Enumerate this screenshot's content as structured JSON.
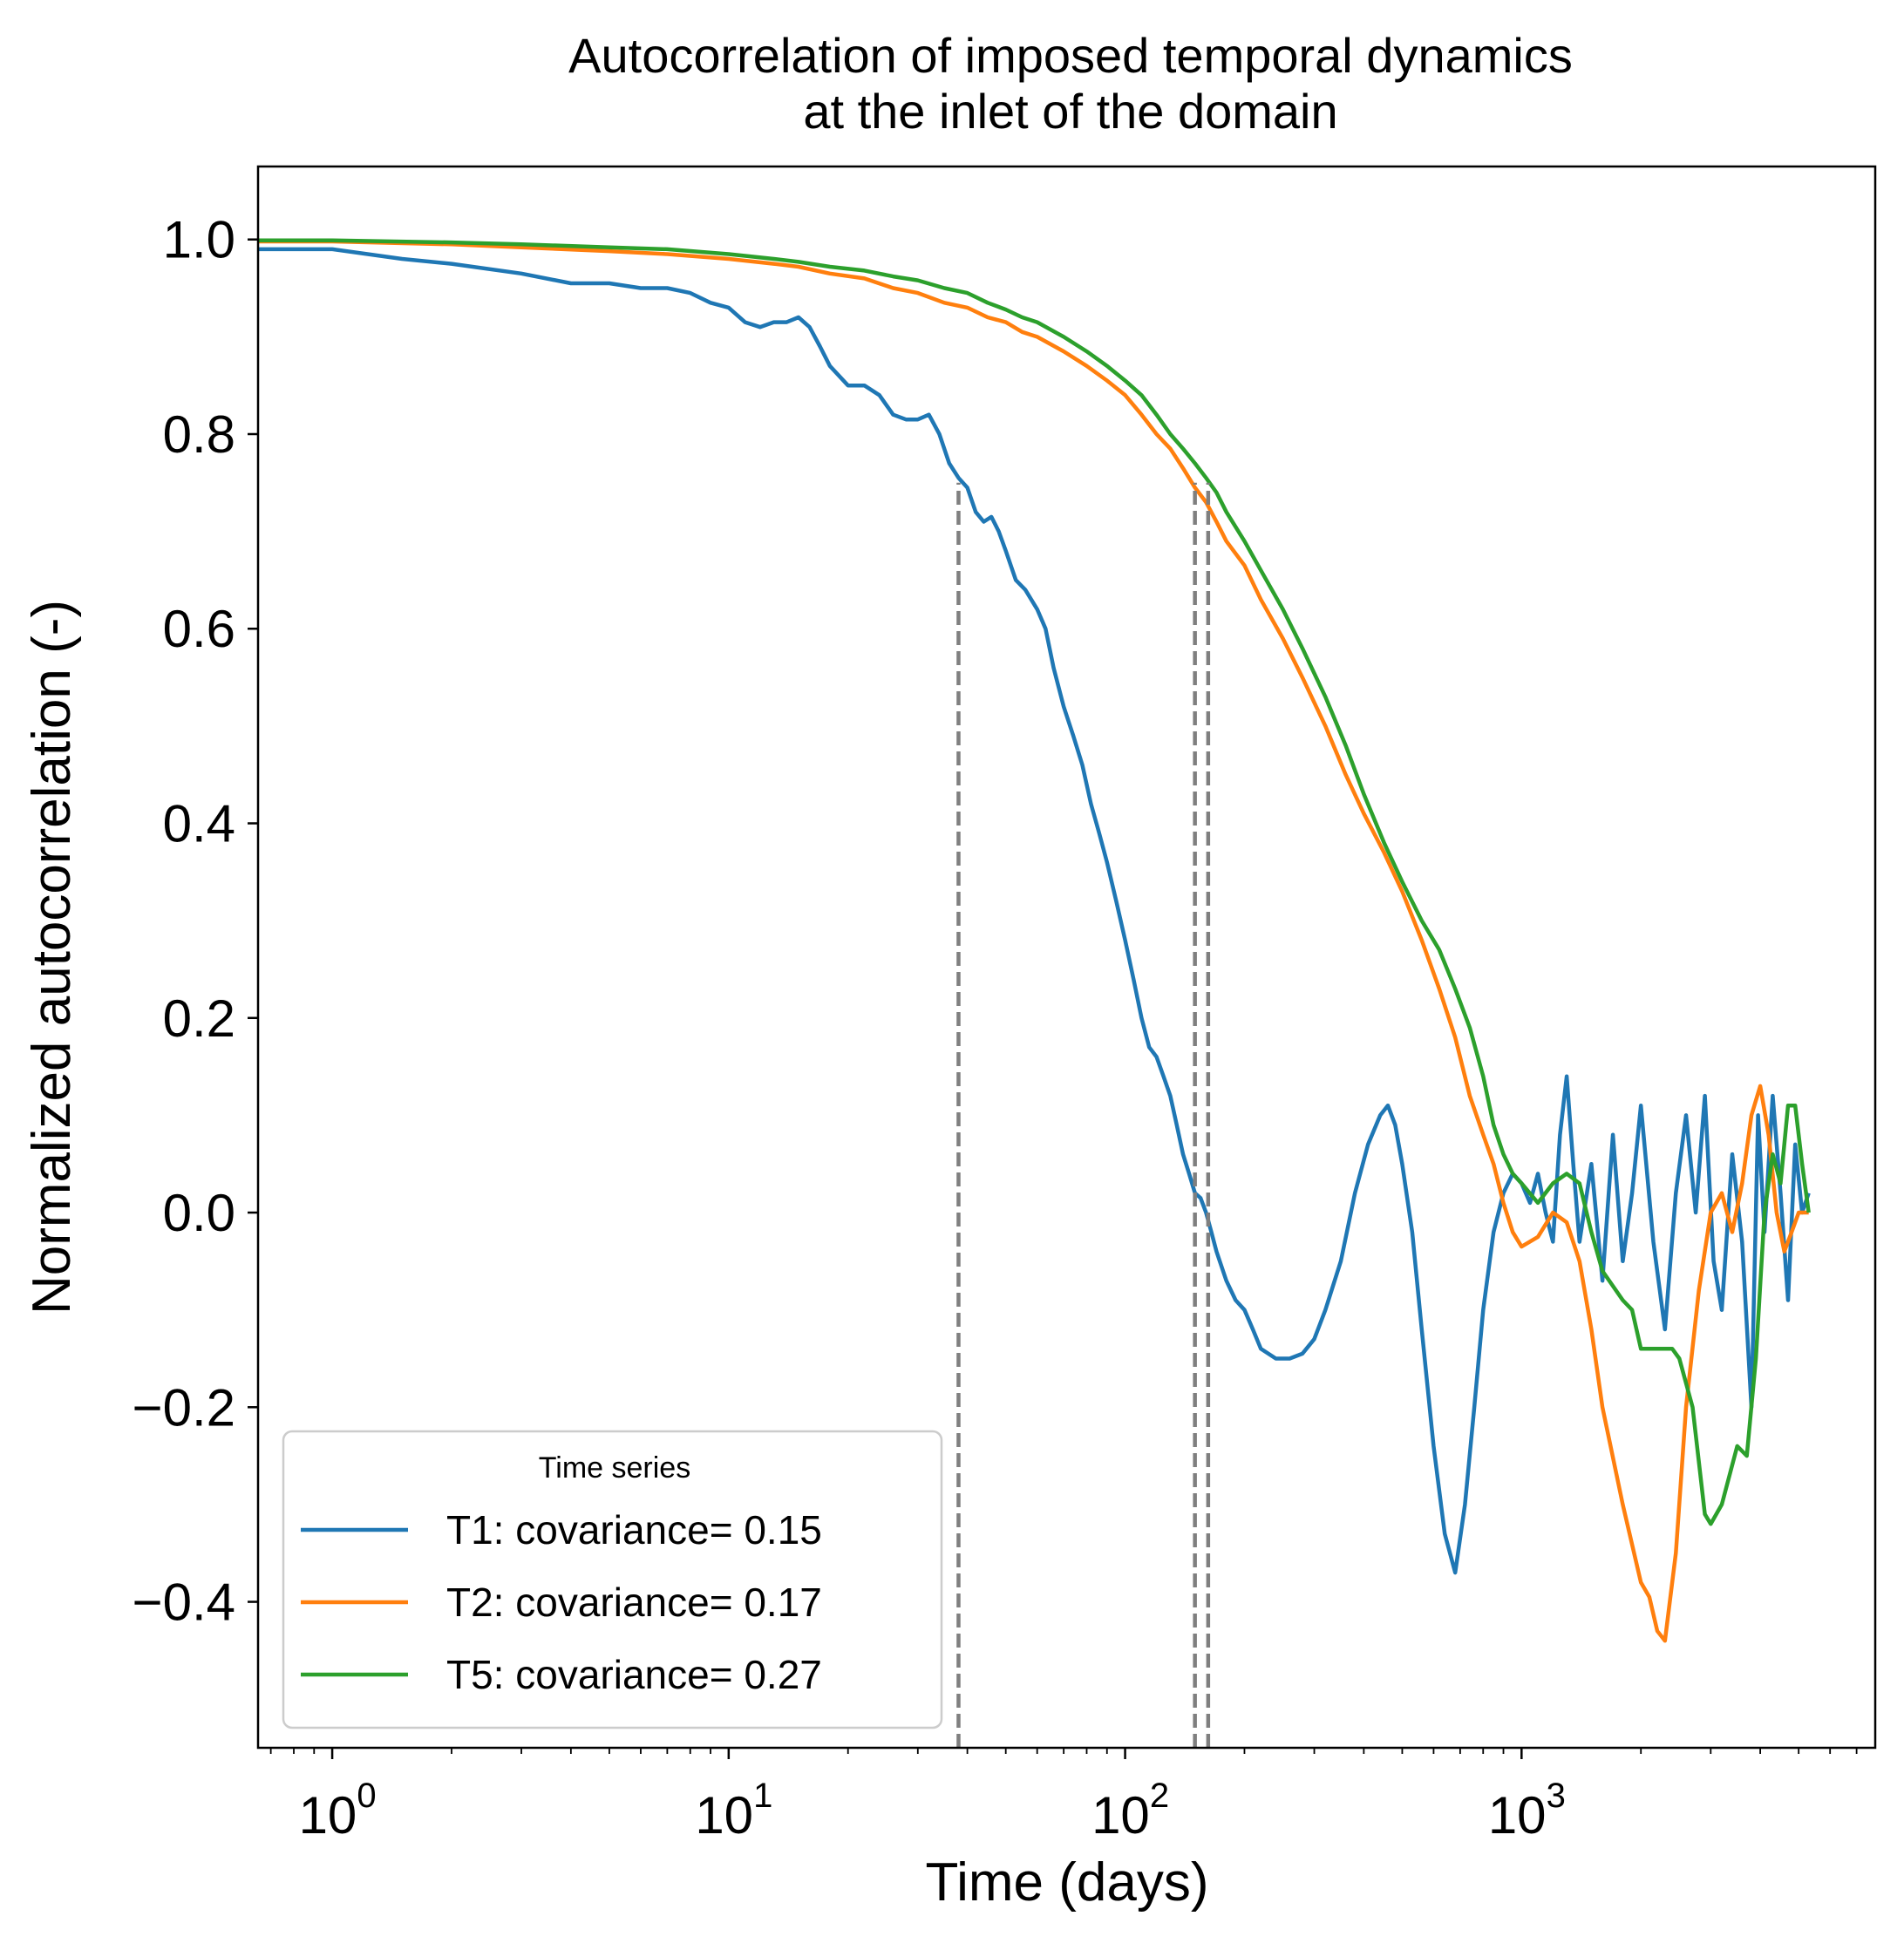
{
  "chart_data": {
    "type": "line",
    "title": [
      "Autocorrelation of imposed temporal dynamics",
      "at the inlet of the domain"
    ],
    "xlabel": "Time (days)",
    "ylabel": "Normalized autocorrelation (-)",
    "x_scale": "log",
    "xlim": [
      0.65,
      7800
    ],
    "ylim": [
      -0.55,
      1.075
    ],
    "x_ticks": [
      {
        "value": 1,
        "base": "10",
        "exp": "0"
      },
      {
        "value": 10,
        "base": "10",
        "exp": "1"
      },
      {
        "value": 100,
        "base": "10",
        "exp": "2"
      },
      {
        "value": 1000,
        "base": "10",
        "exp": "3"
      }
    ],
    "y_ticks": [
      {
        "value": 1.0,
        "label": "1.0"
      },
      {
        "value": 0.8,
        "label": "0.8"
      },
      {
        "value": 0.6,
        "label": "0.6"
      },
      {
        "value": 0.4,
        "label": "0.4"
      },
      {
        "value": 0.2,
        "label": "0.2"
      },
      {
        "value": 0.0,
        "label": "0.0"
      },
      {
        "value": -0.2,
        "label": "−0.2"
      },
      {
        "value": -0.4,
        "label": "−0.4"
      }
    ],
    "legend": {
      "title": "Time series",
      "placement": "lower-left"
    },
    "grid": false,
    "reference_lines": [
      {
        "x": 38,
        "style": "dashed",
        "color": "#7f7f7f"
      },
      {
        "x": 150,
        "style": "dashed",
        "color": "#7f7f7f"
      },
      {
        "x": 162,
        "style": "dashed",
        "color": "#7f7f7f"
      }
    ],
    "series": [
      {
        "name": "T1: covariance= 0.15",
        "color": "#1f77b4",
        "points": [
          [
            0.65,
            0.99
          ],
          [
            1,
            0.99
          ],
          [
            1.5,
            0.98
          ],
          [
            2,
            0.975
          ],
          [
            3,
            0.965
          ],
          [
            4,
            0.955
          ],
          [
            5,
            0.955
          ],
          [
            6,
            0.95
          ],
          [
            7,
            0.95
          ],
          [
            8,
            0.945
          ],
          [
            9,
            0.935
          ],
          [
            10,
            0.93
          ],
          [
            11,
            0.915
          ],
          [
            12,
            0.91
          ],
          [
            13,
            0.915
          ],
          [
            14,
            0.915
          ],
          [
            15,
            0.92
          ],
          [
            16,
            0.91
          ],
          [
            17,
            0.89
          ],
          [
            18,
            0.87
          ],
          [
            20,
            0.85
          ],
          [
            22,
            0.85
          ],
          [
            24,
            0.84
          ],
          [
            26,
            0.82
          ],
          [
            28,
            0.815
          ],
          [
            30,
            0.815
          ],
          [
            32,
            0.82
          ],
          [
            34,
            0.8
          ],
          [
            36,
            0.77
          ],
          [
            38,
            0.755
          ],
          [
            40,
            0.745
          ],
          [
            42,
            0.72
          ],
          [
            44,
            0.71
          ],
          [
            46,
            0.715
          ],
          [
            48,
            0.7
          ],
          [
            50,
            0.68
          ],
          [
            53,
            0.65
          ],
          [
            56,
            0.64
          ],
          [
            60,
            0.62
          ],
          [
            63,
            0.6
          ],
          [
            66,
            0.56
          ],
          [
            70,
            0.52
          ],
          [
            74,
            0.49
          ],
          [
            78,
            0.46
          ],
          [
            82,
            0.42
          ],
          [
            86,
            0.39
          ],
          [
            90,
            0.36
          ],
          [
            95,
            0.32
          ],
          [
            100,
            0.28
          ],
          [
            105,
            0.24
          ],
          [
            110,
            0.2
          ],
          [
            115,
            0.17
          ],
          [
            120,
            0.16
          ],
          [
            125,
            0.14
          ],
          [
            130,
            0.12
          ],
          [
            135,
            0.09
          ],
          [
            140,
            0.06
          ],
          [
            145,
            0.04
          ],
          [
            150,
            0.02
          ],
          [
            155,
            0.015
          ],
          [
            160,
            0.0
          ],
          [
            165,
            -0.02
          ],
          [
            170,
            -0.04
          ],
          [
            180,
            -0.07
          ],
          [
            190,
            -0.09
          ],
          [
            200,
            -0.1
          ],
          [
            210,
            -0.12
          ],
          [
            220,
            -0.14
          ],
          [
            240,
            -0.15
          ],
          [
            260,
            -0.15
          ],
          [
            280,
            -0.145
          ],
          [
            300,
            -0.13
          ],
          [
            320,
            -0.1
          ],
          [
            350,
            -0.05
          ],
          [
            380,
            0.02
          ],
          [
            410,
            0.07
          ],
          [
            440,
            0.1
          ],
          [
            460,
            0.11
          ],
          [
            480,
            0.09
          ],
          [
            500,
            0.05
          ],
          [
            530,
            -0.02
          ],
          [
            560,
            -0.12
          ],
          [
            600,
            -0.24
          ],
          [
            640,
            -0.33
          ],
          [
            680,
            -0.37
          ],
          [
            720,
            -0.3
          ],
          [
            760,
            -0.2
          ],
          [
            800,
            -0.1
          ],
          [
            850,
            -0.02
          ],
          [
            900,
            0.02
          ],
          [
            950,
            0.04
          ],
          [
            1000,
            0.03
          ],
          [
            1050,
            0.01
          ],
          [
            1100,
            0.04
          ],
          [
            1150,
            0.0
          ],
          [
            1200,
            -0.03
          ],
          [
            1250,
            0.08
          ],
          [
            1300,
            0.14
          ],
          [
            1350,
            0.05
          ],
          [
            1400,
            -0.03
          ],
          [
            1500,
            0.05
          ],
          [
            1600,
            -0.07
          ],
          [
            1700,
            0.08
          ],
          [
            1800,
            -0.05
          ],
          [
            1900,
            0.02
          ],
          [
            2000,
            0.11
          ],
          [
            2150,
            -0.03
          ],
          [
            2300,
            -0.12
          ],
          [
            2450,
            0.02
          ],
          [
            2600,
            0.1
          ],
          [
            2750,
            0.0
          ],
          [
            2900,
            0.12
          ],
          [
            3050,
            -0.05
          ],
          [
            3200,
            -0.1
          ],
          [
            3400,
            0.06
          ],
          [
            3600,
            -0.03
          ],
          [
            3800,
            -0.2
          ],
          [
            3950,
            0.1
          ],
          [
            4100,
            -0.02
          ],
          [
            4300,
            0.12
          ],
          [
            4500,
            0.02
          ],
          [
            4700,
            -0.09
          ],
          [
            4900,
            0.07
          ],
          [
            5100,
            0.0
          ],
          [
            5300,
            0.02
          ]
        ]
      },
      {
        "name": "T2: covariance= 0.17",
        "color": "#ff7f0e",
        "points": [
          [
            0.65,
            0.998
          ],
          [
            1,
            0.998
          ],
          [
            2,
            0.995
          ],
          [
            3,
            0.992
          ],
          [
            5,
            0.988
          ],
          [
            7,
            0.985
          ],
          [
            10,
            0.98
          ],
          [
            13,
            0.975
          ],
          [
            15,
            0.972
          ],
          [
            18,
            0.965
          ],
          [
            22,
            0.96
          ],
          [
            26,
            0.95
          ],
          [
            30,
            0.945
          ],
          [
            35,
            0.935
          ],
          [
            40,
            0.93
          ],
          [
            45,
            0.92
          ],
          [
            50,
            0.915
          ],
          [
            55,
            0.905
          ],
          [
            60,
            0.9
          ],
          [
            70,
            0.885
          ],
          [
            80,
            0.87
          ],
          [
            90,
            0.855
          ],
          [
            100,
            0.84
          ],
          [
            110,
            0.82
          ],
          [
            120,
            0.8
          ],
          [
            130,
            0.785
          ],
          [
            140,
            0.765
          ],
          [
            150,
            0.745
          ],
          [
            160,
            0.73
          ],
          [
            170,
            0.71
          ],
          [
            180,
            0.69
          ],
          [
            200,
            0.665
          ],
          [
            220,
            0.63
          ],
          [
            250,
            0.59
          ],
          [
            280,
            0.55
          ],
          [
            320,
            0.5
          ],
          [
            360,
            0.45
          ],
          [
            400,
            0.41
          ],
          [
            450,
            0.37
          ],
          [
            500,
            0.33
          ],
          [
            560,
            0.28
          ],
          [
            620,
            0.23
          ],
          [
            680,
            0.18
          ],
          [
            740,
            0.12
          ],
          [
            800,
            0.08
          ],
          [
            850,
            0.05
          ],
          [
            900,
            0.01
          ],
          [
            950,
            -0.02
          ],
          [
            1000,
            -0.035
          ],
          [
            1100,
            -0.025
          ],
          [
            1200,
            0.0
          ],
          [
            1300,
            -0.01
          ],
          [
            1400,
            -0.05
          ],
          [
            1500,
            -0.12
          ],
          [
            1600,
            -0.2
          ],
          [
            1800,
            -0.3
          ],
          [
            2000,
            -0.38
          ],
          [
            2100,
            -0.395
          ],
          [
            2200,
            -0.43
          ],
          [
            2300,
            -0.44
          ],
          [
            2450,
            -0.35
          ],
          [
            2600,
            -0.2
          ],
          [
            2800,
            -0.08
          ],
          [
            3000,
            0.0
          ],
          [
            3200,
            0.02
          ],
          [
            3400,
            -0.02
          ],
          [
            3600,
            0.03
          ],
          [
            3800,
            0.1
          ],
          [
            4000,
            0.13
          ],
          [
            4200,
            0.08
          ],
          [
            4400,
            0.0
          ],
          [
            4600,
            -0.04
          ],
          [
            4800,
            -0.02
          ],
          [
            5000,
            0.0
          ],
          [
            5300,
            0.0
          ]
        ]
      },
      {
        "name": "T5: covariance= 0.27",
        "color": "#2ca02c",
        "points": [
          [
            0.65,
            0.999
          ],
          [
            1,
            0.999
          ],
          [
            2,
            0.997
          ],
          [
            3,
            0.995
          ],
          [
            5,
            0.992
          ],
          [
            7,
            0.99
          ],
          [
            10,
            0.985
          ],
          [
            13,
            0.98
          ],
          [
            15,
            0.977
          ],
          [
            18,
            0.972
          ],
          [
            22,
            0.968
          ],
          [
            26,
            0.962
          ],
          [
            30,
            0.958
          ],
          [
            35,
            0.95
          ],
          [
            40,
            0.945
          ],
          [
            45,
            0.935
          ],
          [
            50,
            0.928
          ],
          [
            55,
            0.92
          ],
          [
            60,
            0.915
          ],
          [
            70,
            0.9
          ],
          [
            80,
            0.885
          ],
          [
            90,
            0.87
          ],
          [
            100,
            0.855
          ],
          [
            110,
            0.84
          ],
          [
            120,
            0.82
          ],
          [
            130,
            0.8
          ],
          [
            140,
            0.785
          ],
          [
            150,
            0.77
          ],
          [
            160,
            0.755
          ],
          [
            170,
            0.74
          ],
          [
            180,
            0.72
          ],
          [
            200,
            0.69
          ],
          [
            220,
            0.66
          ],
          [
            250,
            0.62
          ],
          [
            280,
            0.58
          ],
          [
            320,
            0.53
          ],
          [
            360,
            0.48
          ],
          [
            400,
            0.43
          ],
          [
            450,
            0.38
          ],
          [
            500,
            0.34
          ],
          [
            560,
            0.3
          ],
          [
            620,
            0.27
          ],
          [
            680,
            0.23
          ],
          [
            740,
            0.19
          ],
          [
            800,
            0.14
          ],
          [
            850,
            0.09
          ],
          [
            900,
            0.06
          ],
          [
            950,
            0.04
          ],
          [
            1000,
            0.03
          ],
          [
            1100,
            0.01
          ],
          [
            1200,
            0.03
          ],
          [
            1300,
            0.04
          ],
          [
            1400,
            0.03
          ],
          [
            1500,
            -0.02
          ],
          [
            1600,
            -0.06
          ],
          [
            1800,
            -0.09
          ],
          [
            1900,
            -0.1
          ],
          [
            2000,
            -0.14
          ],
          [
            2200,
            -0.14
          ],
          [
            2400,
            -0.14
          ],
          [
            2500,
            -0.15
          ],
          [
            2700,
            -0.2
          ],
          [
            2900,
            -0.31
          ],
          [
            3000,
            -0.32
          ],
          [
            3200,
            -0.3
          ],
          [
            3500,
            -0.24
          ],
          [
            3700,
            -0.25
          ],
          [
            3900,
            -0.15
          ],
          [
            4100,
            0.0
          ],
          [
            4300,
            0.06
          ],
          [
            4500,
            0.03
          ],
          [
            4700,
            0.11
          ],
          [
            4900,
            0.11
          ],
          [
            5100,
            0.05
          ],
          [
            5300,
            0.0
          ]
        ]
      }
    ]
  }
}
